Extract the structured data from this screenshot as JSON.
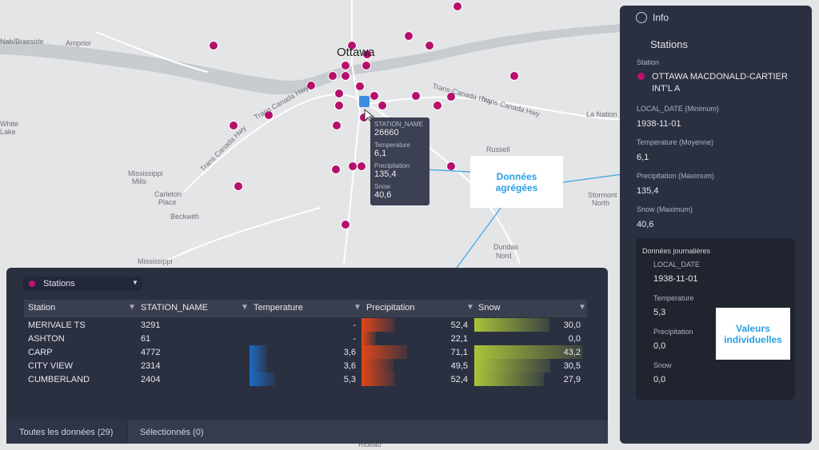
{
  "map": {
    "labels": [
      "Nab/Braeside",
      "Arnprior",
      "Ottawa",
      "White",
      "Lake",
      "Mississippi",
      "Mills",
      "Carleton",
      "Place",
      "Beckwith",
      "Mississippi",
      "Trans Canada Hwy",
      "Trans Canada Hwy",
      "Trans-Canada Hwy",
      "Trans Canada Hwy",
      "Russell",
      "La Nation",
      "Stormont",
      "North",
      "Dundas",
      "Nord",
      "Rideau"
    ]
  },
  "tooltip": {
    "rows": [
      {
        "label": "STATION_NAME",
        "value": "26660"
      },
      {
        "label": "Temperature",
        "value": "6,1"
      },
      {
        "label": "Precipitation",
        "value": "135,4"
      },
      {
        "label": "Snow",
        "value": "40,6"
      }
    ]
  },
  "annotations": [
    "Données agrégées",
    "Valeurs individuelles"
  ],
  "info_panel": {
    "title": "Info",
    "layer": "Stations",
    "fields": [
      {
        "label": "Station",
        "value": "OTTAWA MACDONALD-CARTIER INT'L A"
      },
      {
        "label": "LOCAL_DATE (Minimum)",
        "value": "1938-11-01"
      },
      {
        "label": "Temperature (Moyenne)",
        "value": "6,1"
      },
      {
        "label": "Precipitation (Maximum)",
        "value": "135,4"
      },
      {
        "label": "Snow (Maximum)",
        "value": "40,6"
      }
    ],
    "daily": {
      "title": "Données journalières",
      "fields": [
        {
          "label": "LOCAL_DATE",
          "value": "1938-11-01"
        },
        {
          "label": "Temperature",
          "value": "5,3"
        },
        {
          "label": "Precipitation",
          "value": "0,0"
        },
        {
          "label": "Snow",
          "value": "0,0"
        }
      ]
    }
  },
  "data_panel": {
    "layer": "Stations",
    "columns": [
      "Station",
      "STATION_NAME",
      "Temperature",
      "Precipitation",
      "Snow"
    ],
    "rows": [
      {
        "station": "MERIVALE TS",
        "station_name": "3291",
        "temperature": null,
        "temperature_label": "-",
        "precipitation": 52.4,
        "precipitation_label": "52,4",
        "snow": 30.0,
        "snow_label": "30,0"
      },
      {
        "station": "ASHTON",
        "station_name": "61",
        "temperature": null,
        "temperature_label": "-",
        "precipitation": 22.1,
        "precipitation_label": "22,1",
        "snow": 0.0,
        "snow_label": "0,0"
      },
      {
        "station": "CARP",
        "station_name": "4772",
        "temperature": 3.6,
        "temperature_label": "3,6",
        "precipitation": 71.1,
        "precipitation_label": "71,1",
        "snow": 43.2,
        "snow_label": "43,2"
      },
      {
        "station": "CITY VIEW",
        "station_name": "2314",
        "temperature": 3.6,
        "temperature_label": "3,6",
        "precipitation": 49.5,
        "precipitation_label": "49,5",
        "snow": 30.5,
        "snow_label": "30,5"
      },
      {
        "station": "CUMBERLAND",
        "station_name": "2404",
        "temperature": 5.3,
        "temperature_label": "5,3",
        "precipitation": 52.4,
        "precipitation_label": "52,4",
        "snow": 27.9,
        "snow_label": "27,9"
      }
    ],
    "tabs": [
      "Toutes les données (29)",
      "Sélectionnés (0)"
    ]
  }
}
